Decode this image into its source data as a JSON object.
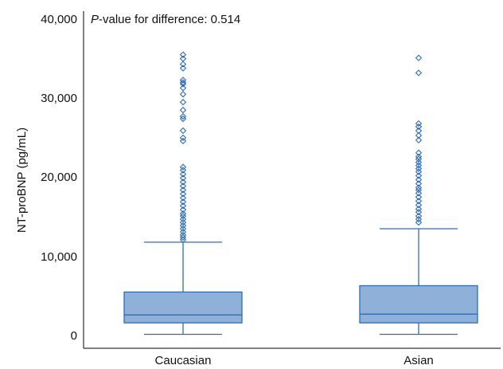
{
  "chart_data": {
    "type": "box",
    "ylabel": "NT-proBNP (pg/mL)",
    "ylim": [
      0,
      40000
    ],
    "yticks": [
      "0",
      "10,000",
      "20,000",
      "30,000",
      "40,000"
    ],
    "ytick_values": [
      0,
      10000,
      20000,
      30000,
      40000
    ],
    "annotation": {
      "italic_part": "P",
      "rest": "-value for difference: 0.514"
    },
    "colors": {
      "box_fill": "#8fb0d8",
      "stroke": "#2e6db4"
    },
    "categories": [
      "Caucasian",
      "Asian"
    ],
    "groups": [
      {
        "name": "Caucasian",
        "whisker_low": 50,
        "q1": 1500,
        "median": 2500,
        "q3": 5400,
        "whisker_high": 11700,
        "outliers": [
          12000,
          12300,
          12600,
          13000,
          13400,
          13800,
          14200,
          14600,
          15000,
          15300,
          15800,
          16300,
          16800,
          17300,
          17800,
          18300,
          18800,
          19300,
          19800,
          20300,
          20800,
          21200,
          24500,
          24900,
          25800,
          27300,
          27600,
          28400,
          29400,
          30400,
          31200,
          31700,
          31900,
          32200,
          33700,
          34200,
          34900,
          35400
        ]
      },
      {
        "name": "Asian",
        "whisker_low": 50,
        "q1": 1500,
        "median": 2600,
        "q3": 6200,
        "whisker_high": 13400,
        "outliers": [
          14200,
          14600,
          15000,
          15500,
          15900,
          16400,
          16900,
          17400,
          17900,
          18300,
          18600,
          19100,
          19600,
          20100,
          20600,
          21000,
          21400,
          21800,
          22200,
          22500,
          23000,
          24600,
          25200,
          25800,
          26300,
          26700,
          33100,
          35000
        ]
      }
    ]
  }
}
